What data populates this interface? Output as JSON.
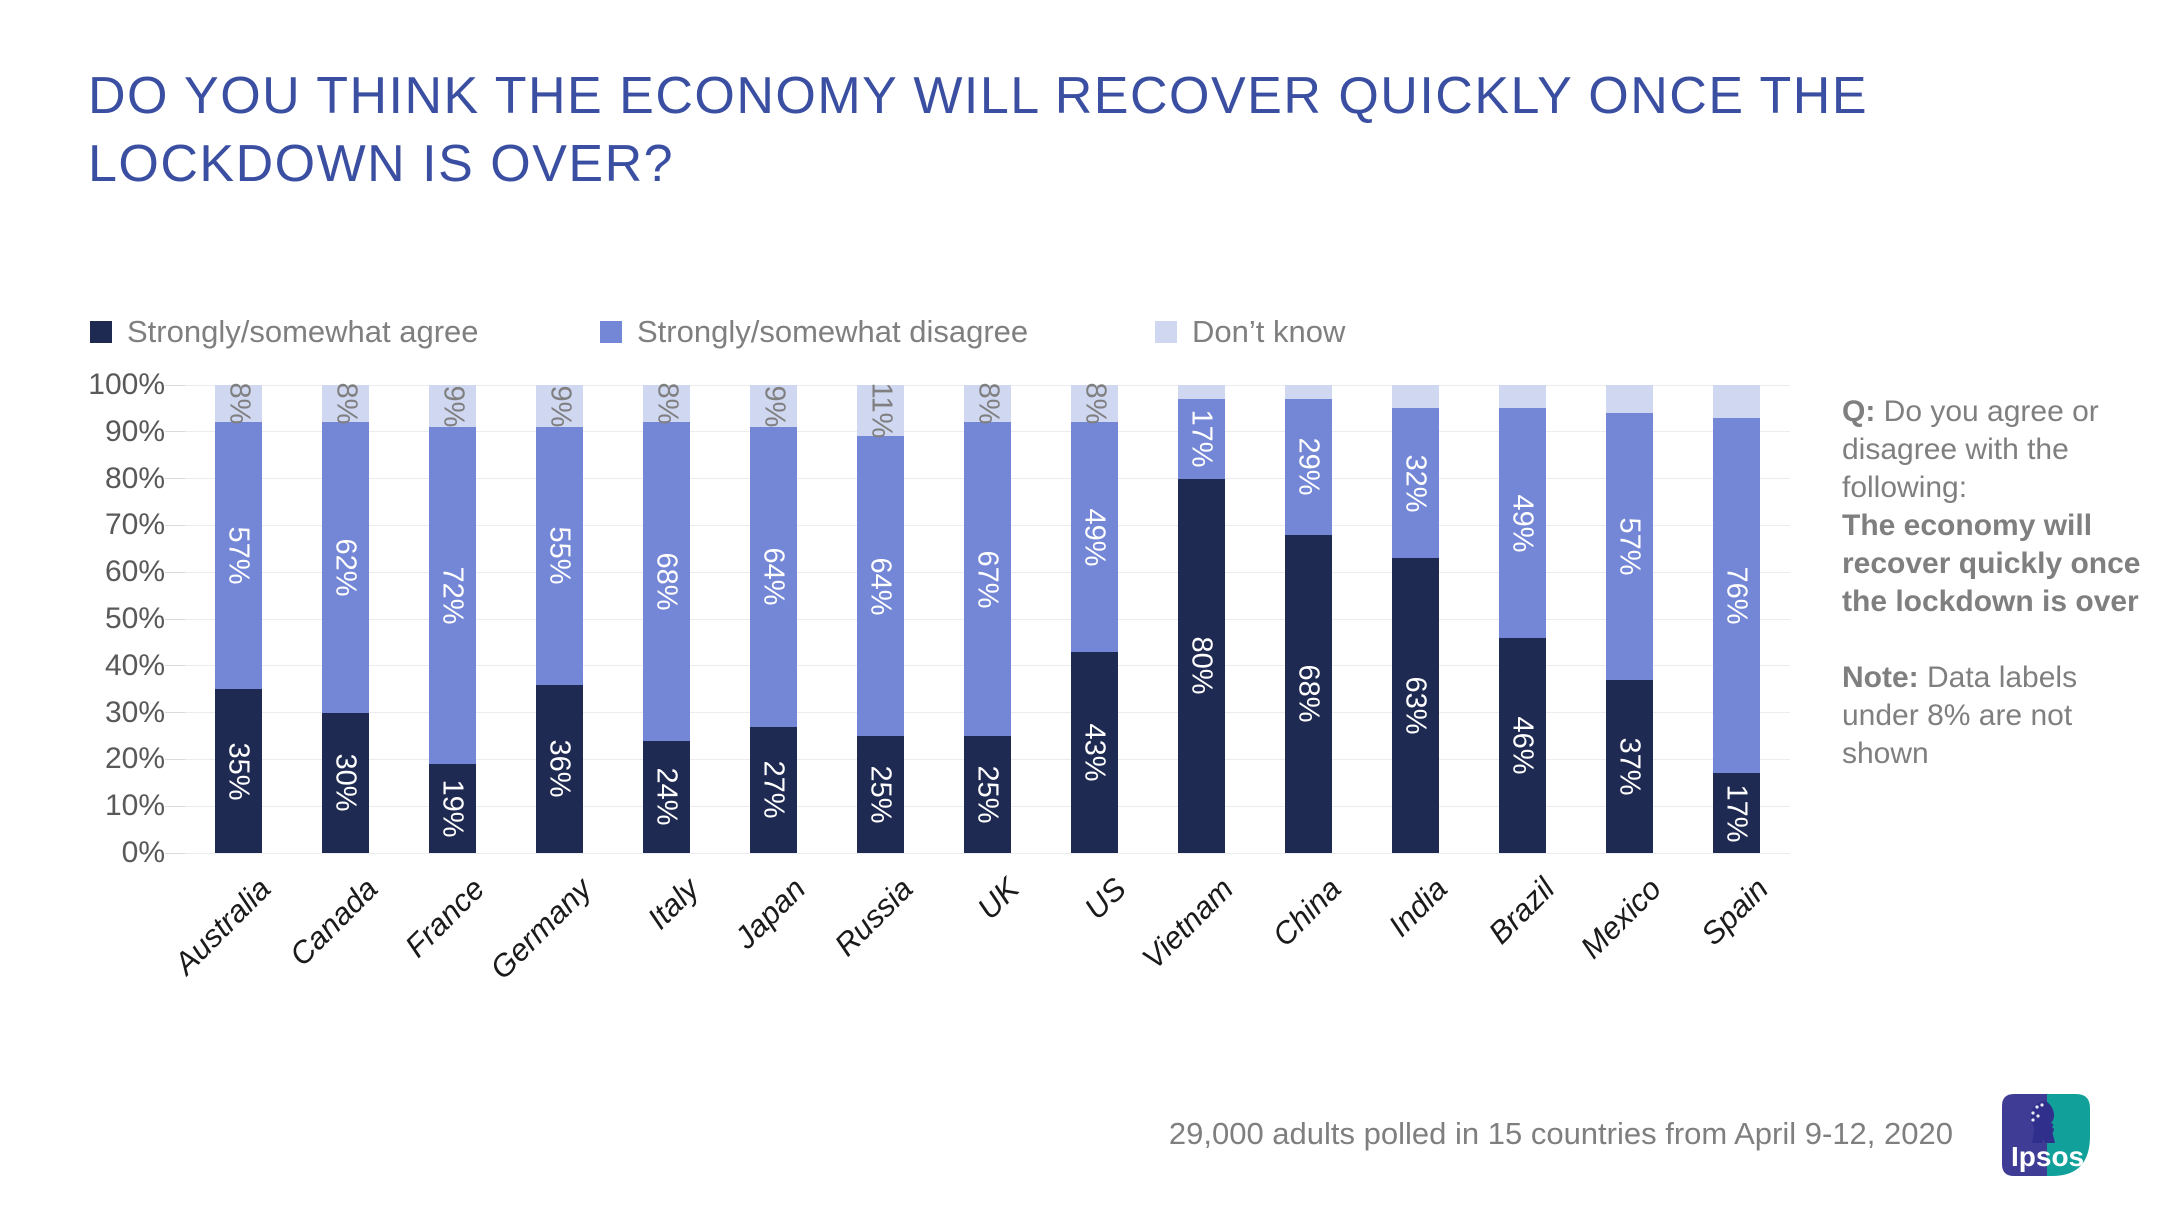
{
  "title": {
    "line1": "DO YOU THINK THE ECONOMY WILL RECOVER QUICKLY ONCE THE",
    "line2": "LOCKDOWN IS OVER?",
    "color": "#3A4FA1"
  },
  "legend": [
    {
      "label": "Strongly/somewhat agree",
      "color": "#1F2A52"
    },
    {
      "label": "Strongly/somewhat disagree",
      "color": "#7486D6"
    },
    {
      "label": "Don’t know",
      "color": "#CFD7F1"
    }
  ],
  "chart_data": {
    "type": "bar",
    "stacked": true,
    "categories": [
      "Australia",
      "Canada",
      "France",
      "Germany",
      "Italy",
      "Japan",
      "Russia",
      "UK",
      "US",
      "Vietnam",
      "China",
      "India",
      "Brazil",
      "Mexico",
      "Spain"
    ],
    "series": [
      {
        "name": "Strongly/somewhat agree",
        "color": "#1F2A52",
        "label_color": "#FFFFFF",
        "values": [
          35,
          30,
          19,
          36,
          24,
          27,
          25,
          25,
          43,
          80,
          68,
          63,
          46,
          37,
          17
        ]
      },
      {
        "name": "Strongly/somewhat disagree",
        "color": "#7486D6",
        "label_color": "#FFFFFF",
        "values": [
          57,
          62,
          72,
          55,
          68,
          64,
          64,
          67,
          49,
          17,
          29,
          32,
          49,
          57,
          76
        ]
      },
      {
        "name": "Don’t know",
        "color": "#CFD7F1",
        "label_color": "#7F7F7F",
        "values": [
          8,
          8,
          9,
          9,
          8,
          9,
          11,
          8,
          8,
          3,
          3,
          5,
          5,
          6,
          7
        ]
      }
    ],
    "y_ticks": [
      "100%",
      "90%",
      "80%",
      "70%",
      "60%",
      "50%",
      "40%",
      "30%",
      "20%",
      "10%",
      "0%"
    ],
    "ylim": [
      0,
      100
    ],
    "grid": true,
    "legend_position": "top",
    "data_label_rule": "labels under 8% are not shown",
    "label_min_shown": 8
  },
  "side_note": {
    "q_label": "Q:",
    "q_text": " Do you agree or disagree with the following:",
    "q_bold": "The economy will recover quickly once the lockdown is over",
    "note_label": "Note:",
    "note_text": " Data labels under 8% are not shown"
  },
  "footer": {
    "source": "29,000 adults polled in 15 countries from April 9-12, 2020"
  },
  "logo": {
    "text": "Ipsos",
    "navy": "#3E3C94",
    "teal": "#12A19A"
  }
}
